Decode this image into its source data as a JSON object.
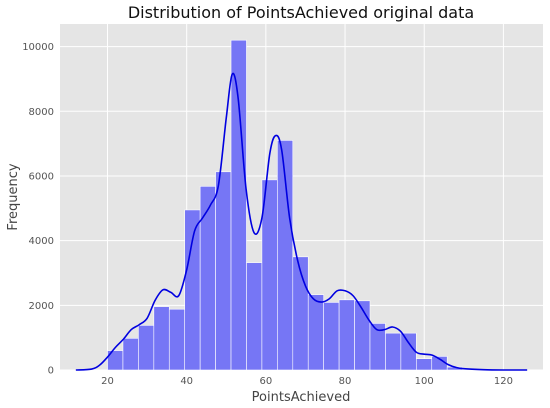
{
  "chart_data": {
    "type": "bar",
    "title": "Distribution of PointsAchieved original data",
    "xlabel": "PointsAchieved",
    "ylabel": "Frequency",
    "xlim": [
      8,
      130
    ],
    "ylim": [
      0,
      10700
    ],
    "x_ticks": [
      20,
      40,
      60,
      80,
      100,
      120
    ],
    "y_ticks": [
      0,
      2000,
      4000,
      6000,
      8000,
      10000
    ],
    "x_tick_labels": [
      "20",
      "40",
      "60",
      "80",
      "100",
      "120"
    ],
    "y_tick_labels": [
      "0",
      "2000",
      "4000",
      "6000",
      "8000",
      "10000"
    ],
    "grid": true,
    "bins": [
      {
        "start": 20.0,
        "end": 23.9,
        "value": 600
      },
      {
        "start": 23.9,
        "end": 27.8,
        "value": 980
      },
      {
        "start": 27.8,
        "end": 31.7,
        "value": 1380
      },
      {
        "start": 31.7,
        "end": 35.6,
        "value": 1960
      },
      {
        "start": 35.6,
        "end": 39.5,
        "value": 1880
      },
      {
        "start": 39.5,
        "end": 43.4,
        "value": 4950
      },
      {
        "start": 43.4,
        "end": 47.3,
        "value": 5680
      },
      {
        "start": 47.3,
        "end": 51.2,
        "value": 6130
      },
      {
        "start": 51.2,
        "end": 55.1,
        "value": 10200
      },
      {
        "start": 55.1,
        "end": 59.0,
        "value": 3320
      },
      {
        "start": 59.0,
        "end": 62.9,
        "value": 5880
      },
      {
        "start": 62.9,
        "end": 66.8,
        "value": 7100
      },
      {
        "start": 66.8,
        "end": 70.7,
        "value": 3500
      },
      {
        "start": 70.7,
        "end": 74.6,
        "value": 2330
      },
      {
        "start": 74.6,
        "end": 78.5,
        "value": 2090
      },
      {
        "start": 78.5,
        "end": 82.4,
        "value": 2170
      },
      {
        "start": 82.4,
        "end": 86.3,
        "value": 2140
      },
      {
        "start": 86.3,
        "end": 90.2,
        "value": 1440
      },
      {
        "start": 90.2,
        "end": 94.1,
        "value": 1140
      },
      {
        "start": 94.1,
        "end": 98.0,
        "value": 1140
      },
      {
        "start": 98.0,
        "end": 101.9,
        "value": 350
      },
      {
        "start": 101.9,
        "end": 105.8,
        "value": 420
      },
      {
        "start": 105.8,
        "end": 109.7,
        "value": 90
      }
    ],
    "kde": {
      "x": [
        12,
        16,
        18,
        20,
        22,
        24,
        26,
        28,
        30,
        32,
        34,
        36,
        38,
        40,
        42,
        44,
        46,
        48,
        50,
        51.5,
        53,
        55,
        57,
        59,
        61,
        62.5,
        64,
        66,
        68,
        70,
        72,
        74,
        76,
        78,
        80,
        82,
        84,
        86,
        88,
        90,
        92,
        94,
        96,
        98,
        100,
        102,
        104,
        106,
        108,
        110,
        115,
        120,
        126
      ],
      "y": [
        0,
        30,
        150,
        400,
        700,
        950,
        1250,
        1400,
        1600,
        2150,
        2480,
        2400,
        2300,
        3100,
        4300,
        4700,
        5100,
        5700,
        7800,
        9150,
        8400,
        5600,
        4250,
        4700,
        6700,
        7250,
        6800,
        4700,
        3400,
        2600,
        2200,
        2100,
        2200,
        2450,
        2450,
        2300,
        1950,
        1550,
        1250,
        1250,
        1330,
        1200,
        850,
        550,
        490,
        460,
        330,
        170,
        80,
        40,
        10,
        0,
        0
      ],
      "color": "#0000e0"
    },
    "bar_color": "#7676f5",
    "background_color": "#e5e5e5"
  }
}
